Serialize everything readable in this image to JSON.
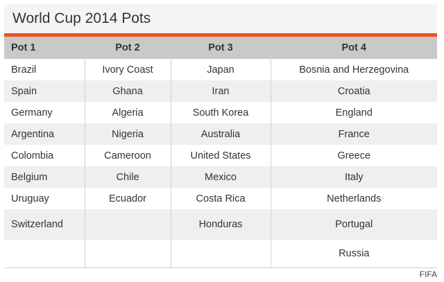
{
  "title": "World Cup 2014 Pots",
  "source": "FIFA",
  "colors": {
    "accent": "#f0501e",
    "header_bg": "#c9c9c9",
    "row_alt": "#efefef",
    "title_bg": "#f4f4f4"
  },
  "table": {
    "headers": [
      "Pot 1",
      "Pot 2",
      "Pot 3",
      "Pot 4"
    ],
    "rows": [
      [
        "Brazil",
        "Ivory Coast",
        "Japan",
        "Bosnia and Herzegovina"
      ],
      [
        "Spain",
        "Ghana",
        "Iran",
        "Croatia"
      ],
      [
        "Germany",
        "Algeria",
        "South Korea",
        "England"
      ],
      [
        "Argentina",
        "Nigeria",
        "Australia",
        "France"
      ],
      [
        "Colombia",
        "Cameroon",
        "United States",
        "Greece"
      ],
      [
        "Belgium",
        "Chile",
        "Mexico",
        "Italy"
      ],
      [
        "Uruguay",
        "Ecuador",
        "Costa Rica",
        "Netherlands"
      ],
      [
        "Switzerland",
        "",
        "Honduras",
        "Portugal"
      ],
      [
        "",
        "",
        "",
        "Russia"
      ]
    ]
  }
}
